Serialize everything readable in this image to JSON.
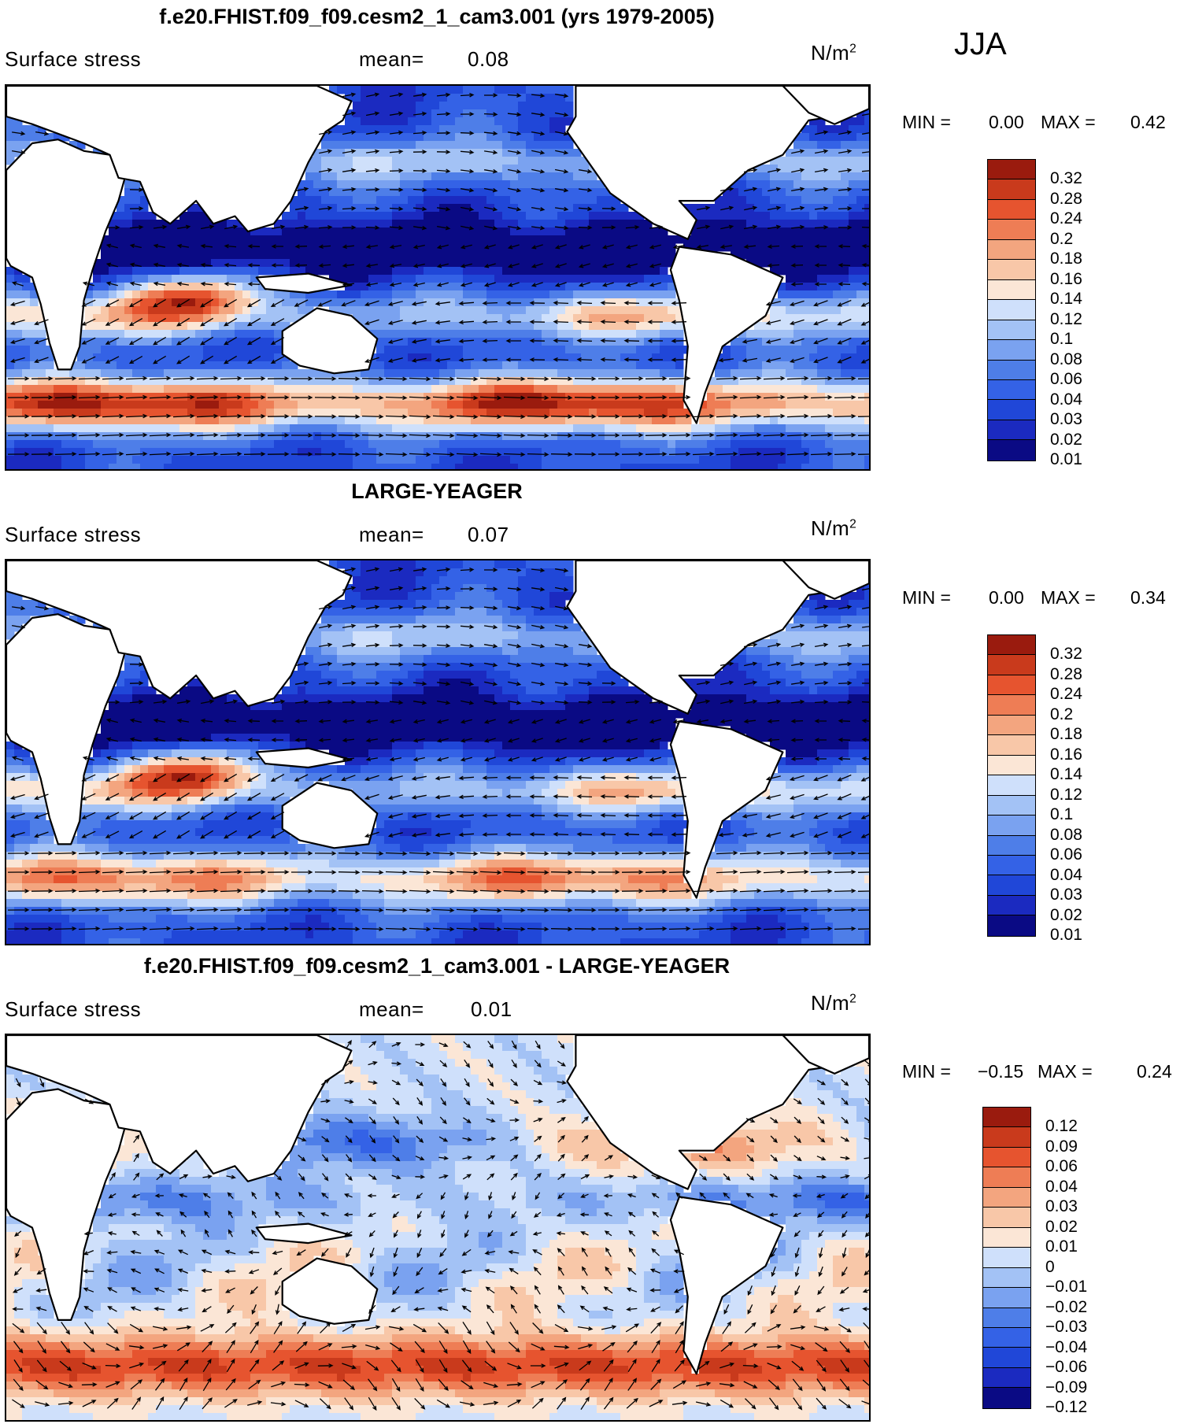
{
  "season": "JJA",
  "units": "N/m",
  "units_exp": "2",
  "series_label": "Surface stress",
  "mean_label": "mean=",
  "min_label": "MIN =",
  "max_label": "MAX =",
  "colors": {
    "land": "#ffffff",
    "coast": "#000000",
    "seq": [
      "#0a0a84",
      "#1b2ac0",
      "#2047d8",
      "#3462e6",
      "#4e7ee8",
      "#7aa2f0",
      "#a3c2f5",
      "#cfe0fb",
      "#fbe6d6",
      "#f8c7a8",
      "#f3a57f",
      "#ee7d55",
      "#e6542f",
      "#c93a1c",
      "#9a1b0e"
    ],
    "div": [
      "#0a0a84",
      "#1b2ac0",
      "#2047d8",
      "#3462e6",
      "#4e7ee8",
      "#7aa2f0",
      "#a3c2f5",
      "#cfe0fb",
      "#fbe6d6",
      "#f8c7a8",
      "#f3a57f",
      "#ee7d55",
      "#e6542f",
      "#c93a1c",
      "#9a1b0e"
    ]
  },
  "chart_data": [
    {
      "type": "heatmap",
      "title": "f.e20.FHIST.f09_f09.cesm2_1_cam3.001 (yrs 1979-2005)",
      "variable": "Surface stress",
      "mean": "0.08",
      "min": "0.00",
      "max": "0.42",
      "colorbar_ticks": [
        "0.32",
        "0.28",
        "0.24",
        "0.2",
        "0.18",
        "0.16",
        "0.14",
        "0.12",
        "0.1",
        "0.08",
        "0.06",
        "0.04",
        "0.03",
        "0.02",
        "0.01"
      ]
    },
    {
      "type": "heatmap",
      "title": "LARGE-YEAGER",
      "variable": "Surface stress",
      "mean": "0.07",
      "min": "0.00",
      "max": "0.34",
      "colorbar_ticks": [
        "0.32",
        "0.28",
        "0.24",
        "0.2",
        "0.18",
        "0.16",
        "0.14",
        "0.12",
        "0.1",
        "0.08",
        "0.06",
        "0.04",
        "0.03",
        "0.02",
        "0.01"
      ]
    },
    {
      "type": "heatmap",
      "title": "f.e20.FHIST.f09_f09.cesm2_1_cam3.001 - LARGE-YEAGER",
      "variable": "Surface stress",
      "mean": "0.01",
      "min": "−0.15",
      "max": "0.24",
      "colorbar_ticks": [
        "0.12",
        "0.09",
        "0.06",
        "0.04",
        "0.03",
        "0.02",
        "0.01",
        "0",
        "−0.01",
        "−0.02",
        "−0.03",
        "−0.04",
        "−0.06",
        "−0.09",
        "−0.12"
      ]
    }
  ]
}
